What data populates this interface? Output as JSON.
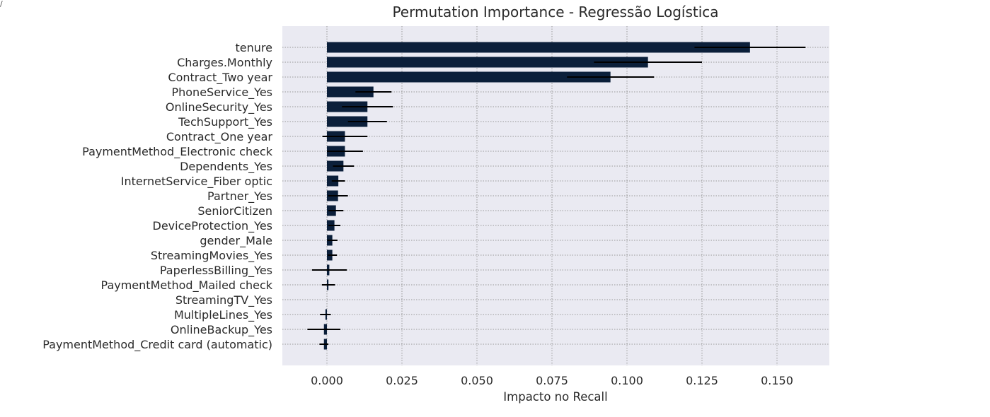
{
  "cell_output_marker": "/",
  "chart_data": {
    "type": "bar",
    "orientation": "horizontal",
    "title": "Permutation Importance - Regressão Logística",
    "xlabel": "Impacto no Recall",
    "ylabel": "",
    "xlim": [
      -0.015,
      0.167
    ],
    "xticks": [
      0.0,
      0.025,
      0.05,
      0.075,
      0.1,
      0.125,
      0.15
    ],
    "xtick_labels": [
      "0.000",
      "0.025",
      "0.050",
      "0.075",
      "0.100",
      "0.125",
      "0.150"
    ],
    "grid": true,
    "grid_style": "dotted",
    "bar_color": "#0b1f3a",
    "background_color": "#eaeaf2",
    "categories": [
      "tenure",
      "Charges.Monthly",
      "Contract_Two year",
      "PhoneService_Yes",
      "OnlineSecurity_Yes",
      "TechSupport_Yes",
      "Contract_One year",
      "PaymentMethod_Electronic check",
      "Dependents_Yes",
      "InternetService_Fiber optic",
      "Partner_Yes",
      "SeniorCitizen",
      "DeviceProtection_Yes",
      "gender_Male",
      "StreamingMovies_Yes",
      "PaperlessBilling_Yes",
      "PaymentMethod_Mailed check",
      "StreamingTV_Yes",
      "MultipleLines_Yes",
      "OnlineBackup_Yes",
      "PaymentMethod_Credit card (automatic)"
    ],
    "values": [
      0.141,
      0.107,
      0.0945,
      0.0155,
      0.0135,
      0.0135,
      0.006,
      0.006,
      0.0055,
      0.0038,
      0.0037,
      0.003,
      0.0025,
      0.0018,
      0.0018,
      0.0008,
      0.0005,
      0.0,
      -0.0005,
      -0.001,
      -0.001
    ],
    "errors": [
      0.0185,
      0.018,
      0.0145,
      0.006,
      0.0085,
      0.0065,
      0.0075,
      0.006,
      0.0035,
      0.0022,
      0.0033,
      0.0025,
      0.002,
      0.0017,
      0.0015,
      0.0058,
      0.0022,
      0.0,
      0.0018,
      0.0055,
      0.0015
    ]
  }
}
